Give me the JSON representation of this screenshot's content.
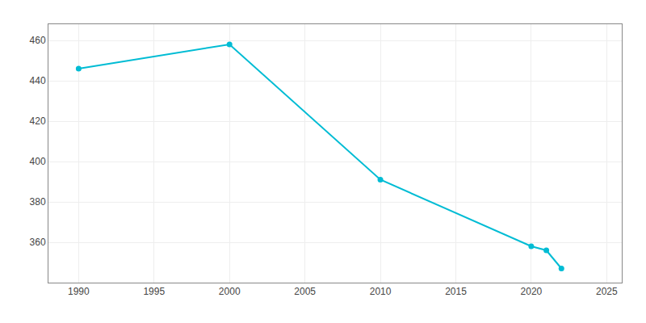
{
  "chart_data": {
    "type": "line",
    "x": [
      1990,
      2000,
      2010,
      2020,
      2021,
      2022
    ],
    "values": [
      446,
      458,
      391,
      358,
      356,
      347
    ],
    "color": "#00bcd4",
    "marker": "circle",
    "xlim": [
      1988,
      2026
    ],
    "xticks": [
      1990,
      1995,
      2000,
      2005,
      2010,
      2015,
      2020,
      2025
    ],
    "ylim": [
      340,
      468
    ],
    "yticks": [
      360,
      380,
      400,
      420,
      440,
      460
    ],
    "grid": true
  }
}
